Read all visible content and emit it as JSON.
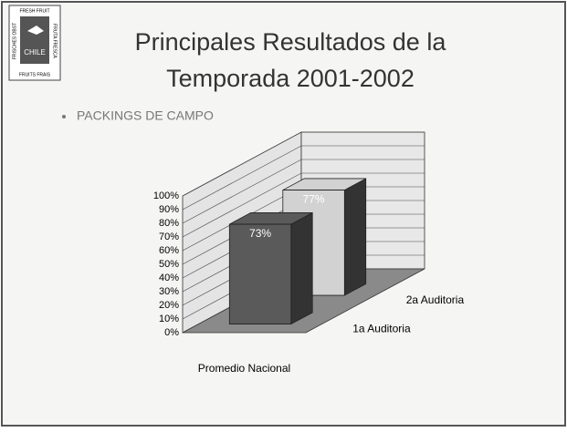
{
  "logo": {
    "top": "FRESH FRUIT",
    "left": "FRISCHES OBST",
    "right": "FRUTA FRESCA",
    "center": "CHILE",
    "bottom": "FRUITS FRAIS"
  },
  "title": [
    "Principales Resultados de la",
    "Temporada 2001-2002"
  ],
  "bullet": "PACKINGS DE CAMPO",
  "chart_data": {
    "type": "bar3d",
    "categories": [
      "Promedio Nacional"
    ],
    "series": [
      {
        "name": "1a Auditoria",
        "color": "#5a5a5a",
        "values": [
          73
        ],
        "value_labels": [
          "73%"
        ]
      },
      {
        "name": "2a Auditoria",
        "color": "#d2d2d2",
        "values": [
          77
        ],
        "value_labels": [
          "77%"
        ]
      }
    ],
    "ylim": [
      0,
      100
    ],
    "yticks": [
      {
        "value": 0,
        "label": "0%"
      },
      {
        "value": 10,
        "label": "10%"
      },
      {
        "value": 20,
        "label": "20%"
      },
      {
        "value": 30,
        "label": "30%"
      },
      {
        "value": 40,
        "label": "40%"
      },
      {
        "value": 50,
        "label": "50%"
      },
      {
        "value": 60,
        "label": "60%"
      },
      {
        "value": 70,
        "label": "70%"
      },
      {
        "value": 80,
        "label": "80%"
      },
      {
        "value": 90,
        "label": "90%"
      },
      {
        "value": 100,
        "label": "100%"
      }
    ],
    "grid": true
  }
}
